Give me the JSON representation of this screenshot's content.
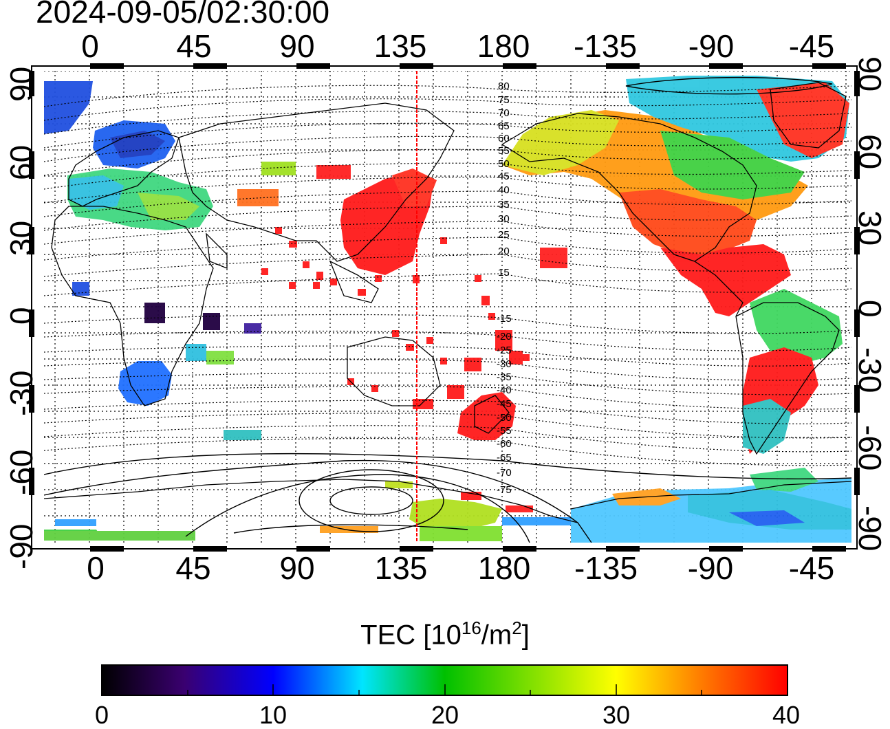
{
  "title": "2024-09-05/02:30:00",
  "axes": {
    "x_ticks_top": [
      "0",
      "45",
      "90",
      "135",
      "180",
      "-135",
      "-90",
      "-45"
    ],
    "x_ticks_bottom": [
      "0",
      "45",
      "90",
      "135",
      "180",
      "-135",
      "-90",
      "-45"
    ],
    "y_ticks_left": [
      "90",
      "60",
      "30",
      "0",
      "-30",
      "-60",
      "-90"
    ],
    "y_ticks_right": [
      "90",
      "60",
      "30",
      "0",
      "-30",
      "-60",
      "-90"
    ]
  },
  "colorbar": {
    "label_prefix": "TEC  [10",
    "label_sup1": "16",
    "label_mid": "/m",
    "label_sup2": "2",
    "label_suffix": "]",
    "ticks": [
      "0",
      "10",
      "20",
      "30",
      "40"
    ],
    "range": [
      0,
      40
    ],
    "colors": [
      "#000000",
      "#3a0070",
      "#0000ff",
      "#00e5ff",
      "#00c000",
      "#ffff00",
      "#ff8000",
      "#ff0000"
    ]
  },
  "contour_labels": {
    "north": [
      "80",
      "75",
      "70",
      "65",
      "60",
      "55",
      "50",
      "45",
      "40",
      "35",
      "30",
      "25",
      "20",
      "15"
    ],
    "south": [
      "-15",
      "-20",
      "-25",
      "-30",
      "-35",
      "-40",
      "-45",
      "-50",
      "-55",
      "-60",
      "-65",
      "-70",
      "-75"
    ]
  },
  "chart_data": {
    "type": "heatmap",
    "title": "2024-09-05/02:30:00",
    "xlabel": "",
    "ylabel": "",
    "colorbar_label": "TEC [10^16/m^2]",
    "xlim_longitude": [
      -20,
      340
    ],
    "ylim_latitude": [
      -90,
      90
    ],
    "value_range": [
      0,
      40
    ],
    "meridian_marker_longitude": 142,
    "regions": [
      {
        "name": "",
        "lon": [
          -20,
          0
        ],
        "lat": [
          60,
          90
        ],
        "tec": 12
      },
      {
        "name": "",
        "lon": [
          0,
          40
        ],
        "lat": [
          55,
          75
        ],
        "tec": 11
      },
      {
        "name": "",
        "lon": [
          -10,
          70
        ],
        "lat": [
          30,
          55
        ],
        "tec": 22
      },
      {
        "name": "",
        "lon": [
          20,
          45
        ],
        "lat": [
          -40,
          -25
        ],
        "tec": 12
      },
      {
        "name": "",
        "lon": [
          25,
          35
        ],
        "lat": [
          -10,
          0
        ],
        "tec": 3
      },
      {
        "name": "",
        "lon": [
          110,
          150
        ],
        "lat": [
          20,
          50
        ],
        "tec": 40
      },
      {
        "name": "",
        "lon": [
          160,
          180
        ],
        "lat": [
          -50,
          -30
        ],
        "tec": 40
      },
      {
        "name": "",
        "lon": [
          190,
          300
        ],
        "lat": [
          55,
          85
        ],
        "tec": 26
      },
      {
        "name": "",
        "lon": [
          235,
          290
        ],
        "lat": [
          15,
          55
        ],
        "tec": 37
      },
      {
        "name": "",
        "lon": [
          290,
          315
        ],
        "lat": [
          -45,
          -20
        ],
        "tec": 40
      },
      {
        "name": "",
        "lon": [
          -20,
          340
        ],
        "lat": [
          -90,
          -75
        ],
        "tec": 22
      }
    ]
  }
}
